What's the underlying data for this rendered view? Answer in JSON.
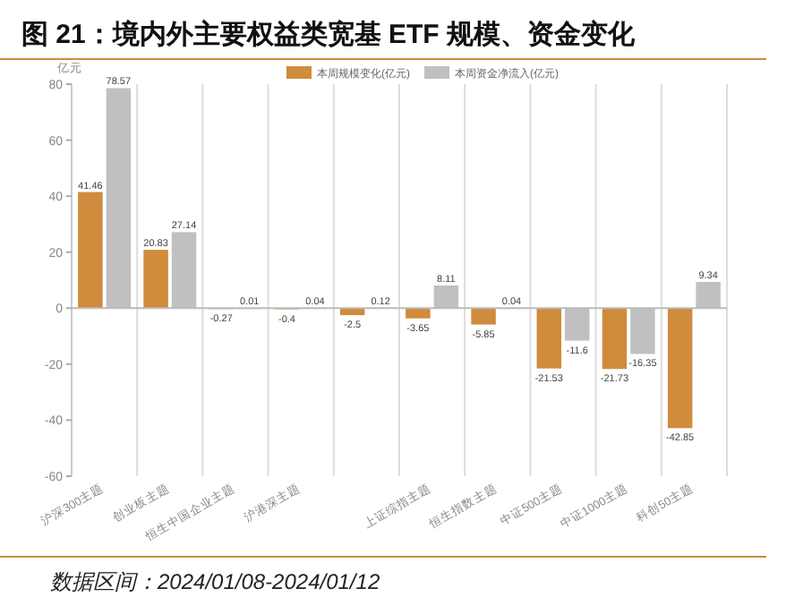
{
  "chart_data": {
    "type": "bar",
    "title": "图 21：境内外主要权益类宽基 ETF 规模、资金变化",
    "ylabel": "亿元",
    "categories": [
      "沪深300主题",
      "创业板主题",
      "恒生中国企业主题",
      "沪港深主题",
      null,
      "上证综指主题",
      "恒生指数主题",
      "中证500主题",
      "中证1000主题",
      "科创50主题"
    ],
    "series": [
      {
        "name": "本周规模变化(亿元)",
        "color": "#d08b3c",
        "values": [
          41.46,
          20.83,
          -0.27,
          -0.4,
          -2.5,
          -3.65,
          -5.85,
          -21.53,
          -21.73,
          -42.85
        ]
      },
      {
        "name": "本周资金净流入(亿元)",
        "color": "#c0c0c0",
        "values": [
          78.57,
          27.14,
          0.01,
          0.04,
          0.12,
          8.11,
          0.04,
          -11.6,
          -16.35,
          9.34
        ]
      }
    ],
    "ylim": [
      -60,
      80
    ],
    "yticks": [
      -60,
      -40,
      -20,
      0,
      20,
      40,
      60,
      80
    ],
    "grid": "x",
    "legend": "top",
    "data_labels": true,
    "annotations": [
      "数据区间：2024/01/08-2024/01/12"
    ]
  }
}
